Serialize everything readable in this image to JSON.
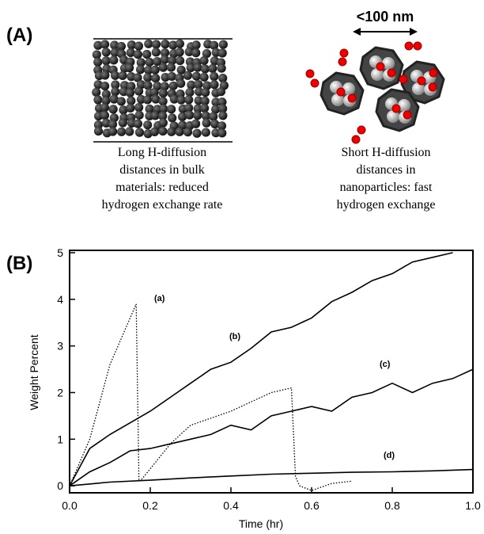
{
  "panel_a": {
    "label": "(A)",
    "scale_label": "<100 nm",
    "left_caption": [
      "Long H-diffusion",
      "distances in bulk",
      "materials:  reduced",
      "hydrogen exchange rate"
    ],
    "right_caption": [
      "Short H-diffusion",
      "distances in",
      "nanoparticles:  fast",
      "hydrogen exchange"
    ]
  },
  "chart_data": {
    "type": "line",
    "panel_label": "(B)",
    "x_label": "Time  (hr)",
    "y_label": "Weight Percent",
    "xlim": [
      0,
      1
    ],
    "ylim": [
      -0.15,
      5.05
    ],
    "xticks": [
      {
        "value": 0,
        "label": "0.0"
      },
      0.2,
      0.4,
      0.6,
      0.8,
      {
        "value": 1,
        "label": "1.0"
      }
    ],
    "yticks": [
      0,
      1,
      2,
      3,
      4,
      5
    ],
    "series": [
      {
        "name": "(a)",
        "color": "#000000",
        "style": "dotted",
        "x": [
          0,
          0.05,
          0.1,
          0.165,
          0.172,
          0.18,
          0.25,
          0.3,
          0.4,
          0.5,
          0.55,
          0.56,
          0.57,
          0.6,
          0.65,
          0.7
        ],
        "values": [
          0,
          1.0,
          2.6,
          3.9,
          0.1,
          0.15,
          0.9,
          1.3,
          1.6,
          2.0,
          2.1,
          0.2,
          0,
          -0.1,
          0.05,
          0.1
        ]
      },
      {
        "name": "(b)",
        "color": "#000000",
        "style": "solid",
        "x": [
          0,
          0.05,
          0.1,
          0.15,
          0.2,
          0.25,
          0.3,
          0.35,
          0.4,
          0.45,
          0.5,
          0.55,
          0.6,
          0.65,
          0.7,
          0.75,
          0.8,
          0.85,
          0.9,
          0.95
        ],
        "values": [
          0,
          0.8,
          1.1,
          1.35,
          1.6,
          1.9,
          2.2,
          2.5,
          2.65,
          2.95,
          3.3,
          3.4,
          3.6,
          3.95,
          4.15,
          4.4,
          4.55,
          4.8,
          4.9,
          5.0
        ]
      },
      {
        "name": "(c)",
        "color": "#000000",
        "style": "solid",
        "x": [
          0,
          0.05,
          0.1,
          0.15,
          0.2,
          0.25,
          0.3,
          0.35,
          0.4,
          0.45,
          0.5,
          0.55,
          0.6,
          0.65,
          0.7,
          0.75,
          0.8,
          0.85,
          0.9,
          0.95,
          1
        ],
        "values": [
          0,
          0.3,
          0.5,
          0.75,
          0.8,
          0.9,
          1.0,
          1.1,
          1.3,
          1.2,
          1.5,
          1.6,
          1.7,
          1.6,
          1.9,
          2.0,
          2.2,
          2.0,
          2.2,
          2.3,
          2.5
        ]
      },
      {
        "name": "(d)",
        "color": "#000000",
        "style": "solid",
        "x": [
          0,
          0.1,
          0.2,
          0.3,
          0.4,
          0.5,
          0.6,
          0.7,
          0.8,
          0.9,
          1
        ],
        "values": [
          0,
          0.08,
          0.12,
          0.17,
          0.21,
          0.25,
          0.27,
          0.29,
          0.3,
          0.32,
          0.35
        ]
      }
    ]
  }
}
